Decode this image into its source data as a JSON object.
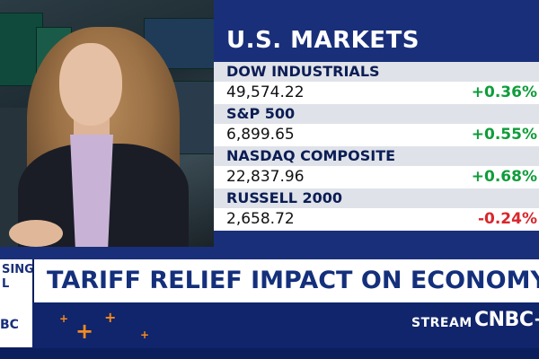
{
  "markets": {
    "title": "U.S. MARKETS",
    "items": [
      {
        "name": "DOW INDUSTRIALS",
        "value": "49,574.22",
        "change": "+0.36%",
        "direction": "up"
      },
      {
        "name": "S&P 500",
        "value": "6,899.65",
        "change": "+0.55%",
        "direction": "up"
      },
      {
        "name": "NASDAQ COMPOSITE",
        "value": "22,837.96",
        "change": "+0.68%",
        "direction": "up"
      },
      {
        "name": "RUSSELL 2000",
        "value": "2,658.72",
        "change": "-0.24%",
        "direction": "down"
      }
    ]
  },
  "lower_third": {
    "side_tag": "SING L",
    "headline": "TARIFF RELIEF IMPACT ON ECONOMY",
    "left_logo": "BC",
    "stream_label": "STREAM",
    "brand": "CNBC+"
  },
  "colors": {
    "navy": "#1a2f7a",
    "up": "#0f9d3a",
    "down": "#d9262c",
    "accent": "#f58a1f"
  }
}
